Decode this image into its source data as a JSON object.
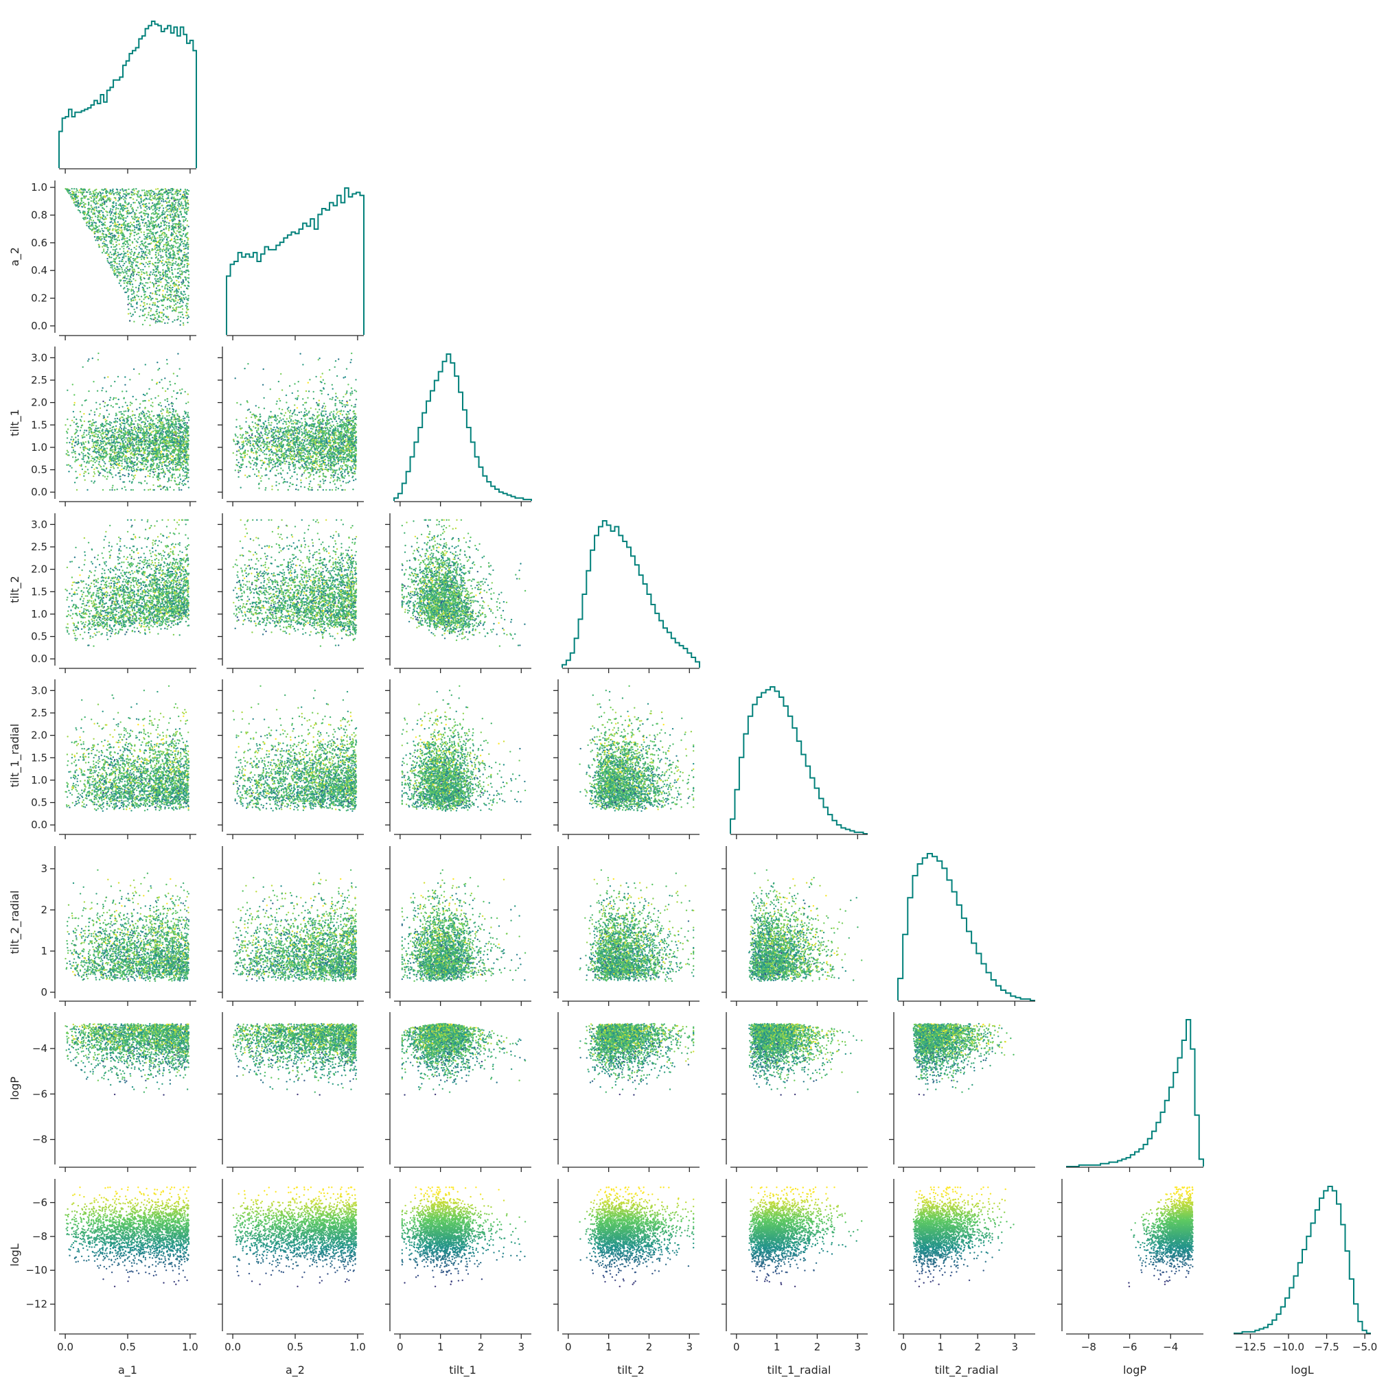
{
  "colors": {
    "histogram": "#00807a",
    "axis": "#262626",
    "colormap": "viridis",
    "viridis_stops": [
      "#440154",
      "#3b528b",
      "#21918c",
      "#5ec962",
      "#fde725"
    ]
  },
  "chart_data": {
    "type": "scatter",
    "description_kind": "corner plot (pair plot, lower triangle)",
    "variables": [
      "a_1",
      "a_2",
      "tilt_1",
      "tilt_2",
      "tilt_1_radial",
      "tilt_2_radial",
      "logP",
      "logL"
    ],
    "diagonal": "step histogram",
    "off_diagonal": "scatter colored by logL (viridis)",
    "grid": false,
    "axes": {
      "a_1": {
        "range": [
          -0.05,
          1.05
        ],
        "ticks": [
          0.0,
          0.5,
          1.0
        ],
        "tick_labels": [
          "0.0",
          "0.5",
          "1.0"
        ]
      },
      "a_2": {
        "range": [
          -0.05,
          1.05
        ],
        "ticks": [
          0.0,
          0.2,
          0.4,
          0.6,
          0.8,
          1.0
        ],
        "tick_labels": [
          "0.0",
          "0.2",
          "0.4",
          "0.6",
          "0.8",
          "1.0"
        ],
        "x_ticks": [
          0.0,
          0.5,
          1.0
        ],
        "x_tick_labels": [
          "0.0",
          "0.5",
          "1.0"
        ]
      },
      "tilt_1": {
        "range": [
          -0.15,
          3.25
        ],
        "ticks": [
          0.0,
          0.5,
          1.0,
          1.5,
          2.0,
          2.5,
          3.0
        ],
        "tick_labels": [
          "0.0",
          "0.5",
          "1.0",
          "1.5",
          "2.0",
          "2.5",
          "3.0"
        ],
        "x_ticks": [
          0,
          1,
          2,
          3
        ],
        "x_tick_labels": [
          "0",
          "1",
          "2",
          "3"
        ]
      },
      "tilt_2": {
        "range": [
          -0.15,
          3.25
        ],
        "ticks": [
          0.0,
          0.5,
          1.0,
          1.5,
          2.0,
          2.5,
          3.0
        ],
        "tick_labels": [
          "0.0",
          "0.5",
          "1.0",
          "1.5",
          "2.0",
          "2.5",
          "3.0"
        ],
        "x_ticks": [
          0,
          1,
          2,
          3
        ],
        "x_tick_labels": [
          "0",
          "1",
          "2",
          "3"
        ]
      },
      "tilt_1_radial": {
        "range": [
          -0.15,
          3.25
        ],
        "ticks": [
          0.0,
          0.5,
          1.0,
          1.5,
          2.0,
          2.5,
          3.0
        ],
        "tick_labels": [
          "0.0",
          "0.5",
          "1.0",
          "1.5",
          "2.0",
          "2.5",
          "3.0"
        ],
        "x_ticks": [
          0,
          1,
          2,
          3
        ],
        "x_tick_labels": [
          "0",
          "1",
          "2",
          "3"
        ]
      },
      "tilt_2_radial": {
        "range": [
          -0.15,
          3.55
        ],
        "ticks": [
          0,
          1,
          2,
          3
        ],
        "tick_labels": [
          "0",
          "1",
          "2",
          "3"
        ]
      },
      "logP": {
        "range": [
          -9.1,
          -2.4
        ],
        "ticks": [
          -8,
          -6,
          -4
        ],
        "tick_labels": [
          "−8",
          "−6",
          "−4"
        ]
      },
      "logL": {
        "range": [
          -13.6,
          -4.6
        ],
        "ticks": [
          -12,
          -10,
          -8,
          -6
        ],
        "tick_labels": [
          "−12",
          "−10",
          "−8",
          "−6"
        ],
        "x_ticks": [
          -12.5,
          -10.0,
          -7.5,
          -5.0
        ],
        "x_tick_labels": [
          "−12.5",
          "−10.0",
          "−7.5",
          "−5.0"
        ]
      }
    },
    "histograms": {
      "a_1": [
        0.25,
        0.34,
        0.35,
        0.4,
        0.35,
        0.38,
        0.38,
        0.39,
        0.4,
        0.41,
        0.43,
        0.46,
        0.44,
        0.5,
        0.45,
        0.53,
        0.55,
        0.6,
        0.6,
        0.62,
        0.7,
        0.73,
        0.78,
        0.8,
        0.82,
        0.88,
        0.9,
        0.95,
        0.97,
        1.0,
        0.98,
        0.97,
        0.93,
        0.95,
        0.97,
        0.92,
        0.96,
        0.9,
        0.96,
        0.91,
        0.85,
        0.87,
        0.8
      ],
      "a_2": [
        0.4,
        0.48,
        0.5,
        0.56,
        0.53,
        0.55,
        0.53,
        0.56,
        0.5,
        0.55,
        0.6,
        0.58,
        0.58,
        0.61,
        0.63,
        0.66,
        0.68,
        0.7,
        0.69,
        0.72,
        0.76,
        0.74,
        0.79,
        0.72,
        0.82,
        0.86,
        0.85,
        0.9,
        0.88,
        0.95,
        0.9,
        1.0,
        0.94,
        0.96,
        0.97,
        0.95
      ],
      "tilt_1": [
        0.02,
        0.05,
        0.12,
        0.2,
        0.3,
        0.4,
        0.5,
        0.6,
        0.68,
        0.75,
        0.82,
        0.88,
        0.95,
        1.0,
        0.94,
        0.85,
        0.74,
        0.62,
        0.5,
        0.4,
        0.3,
        0.23,
        0.17,
        0.13,
        0.1,
        0.08,
        0.06,
        0.05,
        0.04,
        0.03,
        0.02,
        0.02,
        0.01,
        0.01
      ],
      "tilt_2": [
        0.02,
        0.05,
        0.1,
        0.2,
        0.33,
        0.5,
        0.66,
        0.8,
        0.9,
        0.96,
        1.0,
        0.97,
        0.93,
        0.96,
        0.9,
        0.86,
        0.82,
        0.76,
        0.7,
        0.63,
        0.57,
        0.5,
        0.43,
        0.37,
        0.32,
        0.27,
        0.24,
        0.2,
        0.17,
        0.15,
        0.13,
        0.1,
        0.07,
        0.04
      ],
      "tilt_1_radial": [
        0.1,
        0.3,
        0.52,
        0.68,
        0.8,
        0.88,
        0.93,
        0.96,
        0.98,
        1.0,
        0.97,
        0.93,
        0.87,
        0.8,
        0.72,
        0.63,
        0.54,
        0.46,
        0.38,
        0.31,
        0.24,
        0.18,
        0.13,
        0.09,
        0.06,
        0.04,
        0.03,
        0.02,
        0.01,
        0.01,
        0.0
      ],
      "tilt_2_radial": [
        0.15,
        0.45,
        0.7,
        0.85,
        0.93,
        0.97,
        1.0,
        0.98,
        0.95,
        0.9,
        0.82,
        0.74,
        0.65,
        0.56,
        0.47,
        0.39,
        0.32,
        0.25,
        0.19,
        0.14,
        0.1,
        0.07,
        0.05,
        0.03,
        0.02,
        0.01,
        0.01,
        0.0
      ],
      "logP": [
        0.0,
        0.0,
        0.0,
        0.01,
        0.01,
        0.01,
        0.01,
        0.01,
        0.02,
        0.02,
        0.03,
        0.03,
        0.04,
        0.05,
        0.06,
        0.08,
        0.1,
        0.12,
        0.15,
        0.19,
        0.24,
        0.3,
        0.37,
        0.45,
        0.54,
        0.64,
        0.74,
        0.86,
        1.0,
        0.8,
        0.35,
        0.05
      ],
      "logL": [
        0.0,
        0.0,
        0.01,
        0.01,
        0.01,
        0.02,
        0.03,
        0.04,
        0.06,
        0.09,
        0.13,
        0.18,
        0.24,
        0.31,
        0.39,
        0.48,
        0.57,
        0.66,
        0.75,
        0.84,
        0.92,
        0.97,
        1.0,
        0.97,
        0.88,
        0.74,
        0.56,
        0.37,
        0.2,
        0.08,
        0.02,
        0.0
      ]
    }
  },
  "labels": {
    "x": [
      "a_1",
      "a_2",
      "tilt_1",
      "tilt_2",
      "tilt_1_radial",
      "tilt_2_radial",
      "logP",
      "logL"
    ],
    "y": [
      "a_2",
      "tilt_1",
      "tilt_2",
      "tilt_1_radial",
      "tilt_2_radial",
      "logP",
      "logL"
    ]
  }
}
